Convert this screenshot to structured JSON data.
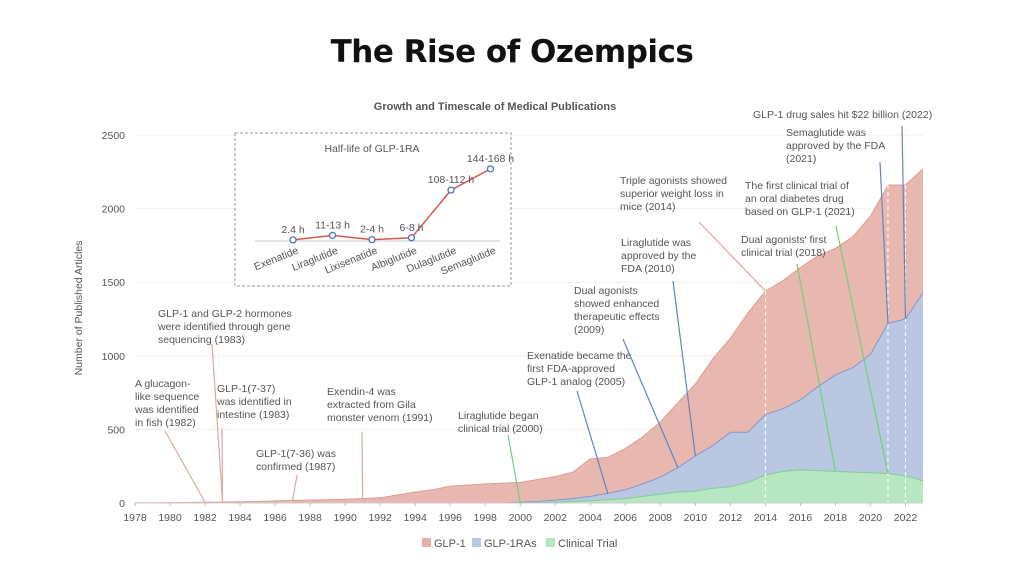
{
  "page_title": "The Rise of Ozempics",
  "chart_data": {
    "type": "area",
    "title": "Growth and Timescale of Medical Publications",
    "ylabel": "Number of Published Articles",
    "xlabel": "",
    "xlim": [
      1978,
      2023
    ],
    "ylim": [
      0,
      2500
    ],
    "x_ticks": [
      1978,
      1980,
      1982,
      1984,
      1986,
      1988,
      1990,
      1992,
      1994,
      1996,
      1998,
      2000,
      2002,
      2004,
      2006,
      2008,
      2010,
      2012,
      2014,
      2016,
      2018,
      2020,
      2022
    ],
    "y_ticks": [
      0,
      500,
      1000,
      1500,
      2000,
      2500
    ],
    "legend_position": "bottom",
    "colors": {
      "glp1": "#e6b1a8",
      "glp1ras": "#b5c8e6",
      "clinical": "#b6e8bf",
      "glp1_line": "#d89185",
      "ras_line": "#6f8fc9",
      "clin_line": "#6fd07e"
    },
    "series": [
      {
        "name": "GLP-1",
        "color": "#e6b1a8",
        "x": [
          1978,
          1980,
          1982,
          1984,
          1985,
          1986,
          1987,
          1988,
          1990,
          1992,
          1994,
          1995,
          1996,
          1998,
          2000,
          2002,
          2003,
          2004,
          2005,
          2006,
          2007,
          2008,
          2009,
          2010,
          2011,
          2012,
          2013,
          2014,
          2015,
          2016,
          2017,
          2018,
          2019,
          2020,
          2021,
          2022,
          2023
        ],
        "values": [
          2,
          3,
          5,
          8,
          10,
          14,
          18,
          20,
          25,
          35,
          75,
          90,
          115,
          130,
          140,
          180,
          210,
          300,
          310,
          370,
          450,
          550,
          680,
          810,
          980,
          1120,
          1290,
          1440,
          1510,
          1600,
          1680,
          1730,
          1810,
          1950,
          2160,
          2160,
          2270
        ]
      },
      {
        "name": "GLP-1RAs",
        "color": "#b5c8e6",
        "x": [
          1978,
          1999,
          2000,
          2001,
          2002,
          2003,
          2004,
          2005,
          2006,
          2007,
          2008,
          2009,
          2010,
          2011,
          2012,
          2013,
          2014,
          2015,
          2016,
          2017,
          2018,
          2019,
          2020,
          2021,
          2022,
          2023
        ],
        "values": [
          0,
          0,
          5,
          10,
          20,
          30,
          45,
          65,
          90,
          130,
          175,
          240,
          320,
          390,
          480,
          480,
          600,
          640,
          700,
          790,
          870,
          920,
          1010,
          1220,
          1250,
          1430
        ]
      },
      {
        "name": "Clinical Trial",
        "color": "#b6e8bf",
        "x": [
          1978,
          2000,
          2002,
          2004,
          2006,
          2007,
          2008,
          2009,
          2010,
          2011,
          2012,
          2013,
          2014,
          2015,
          2016,
          2017,
          2018,
          2019,
          2020,
          2021,
          2022,
          2023
        ],
        "values": [
          0,
          0,
          5,
          15,
          30,
          45,
          60,
          75,
          80,
          100,
          110,
          140,
          190,
          215,
          225,
          220,
          215,
          210,
          205,
          200,
          185,
          150
        ]
      }
    ],
    "annotations": [
      {
        "label": [
          "A glucagon-",
          "like sequence",
          "was identified",
          "in fish (1982)"
        ],
        "year": 1982,
        "color": "#e0a89f"
      },
      {
        "label": [
          "GLP-1 and GLP-2 hormones",
          "were identified through gene",
          "sequencing (1983)"
        ],
        "year": 1983,
        "color": "#e0a89f"
      },
      {
        "label": [
          "GLP-1(7-37)",
          "was identified in",
          "intestine (1983)"
        ],
        "year": 1983,
        "color": "#e0a89f"
      },
      {
        "label": [
          "GLP-1(7-36) was",
          "confirmed (1987)"
        ],
        "year": 1987,
        "color": "#e0a89f"
      },
      {
        "label": [
          "Exendin-4 was",
          "extracted from Gila",
          "monster venom (1991)"
        ],
        "year": 1991,
        "color": "#e0a89f"
      },
      {
        "label": [
          "Liraglutide began",
          "clinical trial (2000)"
        ],
        "year": 2000,
        "color": "#6fd07e"
      },
      {
        "label": [
          "Exenatide became the",
          "first FDA-approved",
          "GLP-1 analog (2005)"
        ],
        "year": 2005,
        "color": "#5b87c5"
      },
      {
        "label": [
          "Dual agonists",
          "showed enhanced",
          "therapeutic effects",
          "(2009)"
        ],
        "year": 2009,
        "color": "#5b87c5"
      },
      {
        "label": [
          "Liraglutide was",
          "approved by the",
          "FDA (2010)"
        ],
        "year": 2010,
        "color": "#5b87c5"
      },
      {
        "label": [
          "Triple agonists showed",
          "superior weight loss in",
          "mice (2014)"
        ],
        "year": 2014,
        "color": "#e0a89f"
      },
      {
        "label": [
          "Dual agonists' first",
          "clinical trial (2018)"
        ],
        "year": 2018,
        "color": "#6fd07e"
      },
      {
        "label": [
          "The first clinical trial of",
          "an oral diabetes drug",
          "based on GLP-1 (2021)"
        ],
        "year": 2021,
        "color": "#6fd07e"
      },
      {
        "label": [
          "Semaglutide was",
          "approved by the FDA",
          "(2021)"
        ],
        "year": 2021,
        "color": "#5b87c5"
      },
      {
        "label": [
          "GLP-1 drug sales hit $22 billion (2022)"
        ],
        "year": 2022,
        "color": "#5b87c5"
      }
    ],
    "inset": {
      "title": "Half-life of GLP-1RA",
      "type": "line",
      "categories": [
        "Exenatide",
        "Liraglutide",
        "Lixisenatide",
        "Albiglutide",
        "Dulaglutide",
        "Semaglutide"
      ],
      "value_labels": [
        "2.4 h",
        "11-13 h",
        "2-4 h",
        "6-8 h",
        "108-112 h",
        "144-168 h"
      ],
      "values": [
        2.4,
        12,
        3,
        7,
        110,
        156
      ]
    }
  }
}
